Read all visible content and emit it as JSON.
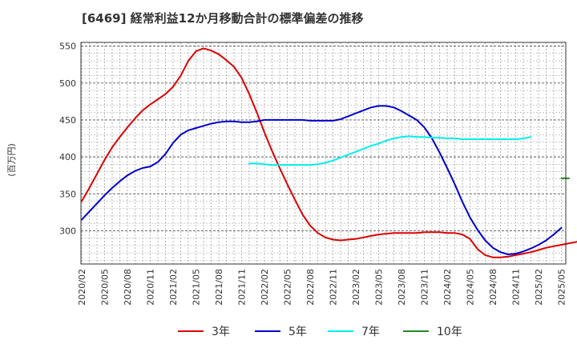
{
  "chart_data": {
    "type": "line",
    "title": "[6469]  経常利益12か月移動合計の標準偏差の推移",
    "ylabel": "(百万円)",
    "xlabel": "",
    "x_ticks": [
      "2020/02",
      "2020/05",
      "2020/08",
      "2020/11",
      "2021/02",
      "2021/05",
      "2021/08",
      "2021/11",
      "2022/02",
      "2022/05",
      "2022/08",
      "2022/11",
      "2023/02",
      "2023/05",
      "2023/08",
      "2023/11",
      "2024/02",
      "2024/05",
      "2024/08",
      "2024/11",
      "2025/02",
      "2025/05"
    ],
    "y_ticks": [
      300,
      350,
      400,
      450,
      500,
      550
    ],
    "ylim": [
      255,
      555
    ],
    "grid": true,
    "legend_position": "bottom",
    "series": [
      {
        "name": "3年",
        "color": "#dd0000",
        "values": [
          [
            0,
            340
          ],
          [
            1,
            358
          ],
          [
            2,
            377
          ],
          [
            3,
            396
          ],
          [
            4,
            413
          ],
          [
            5,
            427
          ],
          [
            6,
            440
          ],
          [
            7,
            452
          ],
          [
            8,
            463
          ],
          [
            9,
            471
          ],
          [
            10,
            478
          ],
          [
            11,
            485
          ],
          [
            12,
            495
          ],
          [
            13,
            510
          ],
          [
            14,
            530
          ],
          [
            15,
            543
          ],
          [
            16,
            547
          ],
          [
            17,
            544
          ],
          [
            18,
            539
          ],
          [
            19,
            531
          ],
          [
            20,
            522
          ],
          [
            21,
            507
          ],
          [
            22,
            485
          ],
          [
            23,
            460
          ],
          [
            24,
            433
          ],
          [
            25,
            408
          ],
          [
            26,
            385
          ],
          [
            27,
            363
          ],
          [
            28,
            342
          ],
          [
            29,
            322
          ],
          [
            30,
            307
          ],
          [
            31,
            297
          ],
          [
            32,
            291
          ],
          [
            33,
            288
          ],
          [
            34,
            287
          ],
          [
            35,
            288
          ],
          [
            36,
            289
          ],
          [
            37,
            291
          ],
          [
            38,
            293
          ],
          [
            39,
            295
          ],
          [
            40,
            296
          ],
          [
            41,
            297
          ],
          [
            42,
            297
          ],
          [
            43,
            297
          ],
          [
            44,
            297
          ],
          [
            45,
            298
          ],
          [
            46,
            298
          ],
          [
            47,
            298
          ],
          [
            48,
            297
          ],
          [
            49,
            297
          ],
          [
            50,
            295
          ],
          [
            51,
            289
          ],
          [
            52,
            275
          ],
          [
            53,
            267
          ],
          [
            54,
            264
          ],
          [
            55,
            264
          ],
          [
            56,
            265
          ],
          [
            57,
            267
          ],
          [
            58,
            269
          ],
          [
            59,
            271
          ],
          [
            60,
            274
          ],
          [
            61,
            277
          ],
          [
            62,
            279
          ],
          [
            63,
            281
          ],
          [
            64,
            283
          ],
          [
            65,
            285
          ]
        ]
      },
      {
        "name": "5年",
        "color": "#0000cc",
        "values": [
          [
            0,
            315
          ],
          [
            1,
            326
          ],
          [
            2,
            337
          ],
          [
            3,
            348
          ],
          [
            4,
            358
          ],
          [
            5,
            367
          ],
          [
            6,
            375
          ],
          [
            7,
            381
          ],
          [
            8,
            385
          ],
          [
            9,
            387
          ],
          [
            10,
            393
          ],
          [
            11,
            404
          ],
          [
            12,
            419
          ],
          [
            13,
            430
          ],
          [
            14,
            436
          ],
          [
            15,
            439
          ],
          [
            16,
            442
          ],
          [
            17,
            445
          ],
          [
            18,
            447
          ],
          [
            19,
            448
          ],
          [
            20,
            448
          ],
          [
            21,
            447
          ],
          [
            22,
            447
          ],
          [
            23,
            448
          ],
          [
            24,
            450
          ],
          [
            25,
            450
          ],
          [
            26,
            450
          ],
          [
            27,
            450
          ],
          [
            28,
            450
          ],
          [
            29,
            450
          ],
          [
            30,
            449
          ],
          [
            31,
            449
          ],
          [
            32,
            449
          ],
          [
            33,
            449
          ],
          [
            34,
            451
          ],
          [
            35,
            455
          ],
          [
            36,
            459
          ],
          [
            37,
            463
          ],
          [
            38,
            467
          ],
          [
            39,
            469
          ],
          [
            40,
            469
          ],
          [
            41,
            467
          ],
          [
            42,
            462
          ],
          [
            43,
            456
          ],
          [
            44,
            450
          ],
          [
            45,
            440
          ],
          [
            46,
            425
          ],
          [
            47,
            406
          ],
          [
            48,
            385
          ],
          [
            49,
            363
          ],
          [
            50,
            339
          ],
          [
            51,
            318
          ],
          [
            52,
            301
          ],
          [
            53,
            287
          ],
          [
            54,
            277
          ],
          [
            55,
            271
          ],
          [
            56,
            268
          ],
          [
            57,
            269
          ],
          [
            58,
            272
          ],
          [
            59,
            276
          ],
          [
            60,
            281
          ],
          [
            61,
            287
          ],
          [
            62,
            295
          ],
          [
            63,
            304
          ]
        ]
      },
      {
        "name": "7年",
        "color": "#00eeee",
        "values": [
          [
            22,
            391
          ],
          [
            23,
            391
          ],
          [
            24,
            390
          ],
          [
            25,
            389
          ],
          [
            26,
            389
          ],
          [
            27,
            389
          ],
          [
            28,
            389
          ],
          [
            29,
            389
          ],
          [
            30,
            389
          ],
          [
            31,
            390
          ],
          [
            32,
            392
          ],
          [
            33,
            395
          ],
          [
            34,
            399
          ],
          [
            35,
            403
          ],
          [
            36,
            407
          ],
          [
            37,
            411
          ],
          [
            38,
            415
          ],
          [
            39,
            418
          ],
          [
            40,
            422
          ],
          [
            41,
            425
          ],
          [
            42,
            427
          ],
          [
            43,
            428
          ],
          [
            44,
            427
          ],
          [
            45,
            427
          ],
          [
            46,
            426
          ],
          [
            47,
            426
          ],
          [
            48,
            425
          ],
          [
            49,
            425
          ],
          [
            50,
            424
          ],
          [
            51,
            424
          ],
          [
            52,
            424
          ],
          [
            53,
            424
          ],
          [
            54,
            424
          ],
          [
            55,
            424
          ],
          [
            56,
            424
          ],
          [
            57,
            424
          ],
          [
            58,
            425
          ],
          [
            59,
            427
          ]
        ]
      },
      {
        "name": "10年",
        "color": "#228822",
        "values": [
          [
            63,
            371
          ],
          [
            64,
            371
          ]
        ]
      }
    ]
  }
}
